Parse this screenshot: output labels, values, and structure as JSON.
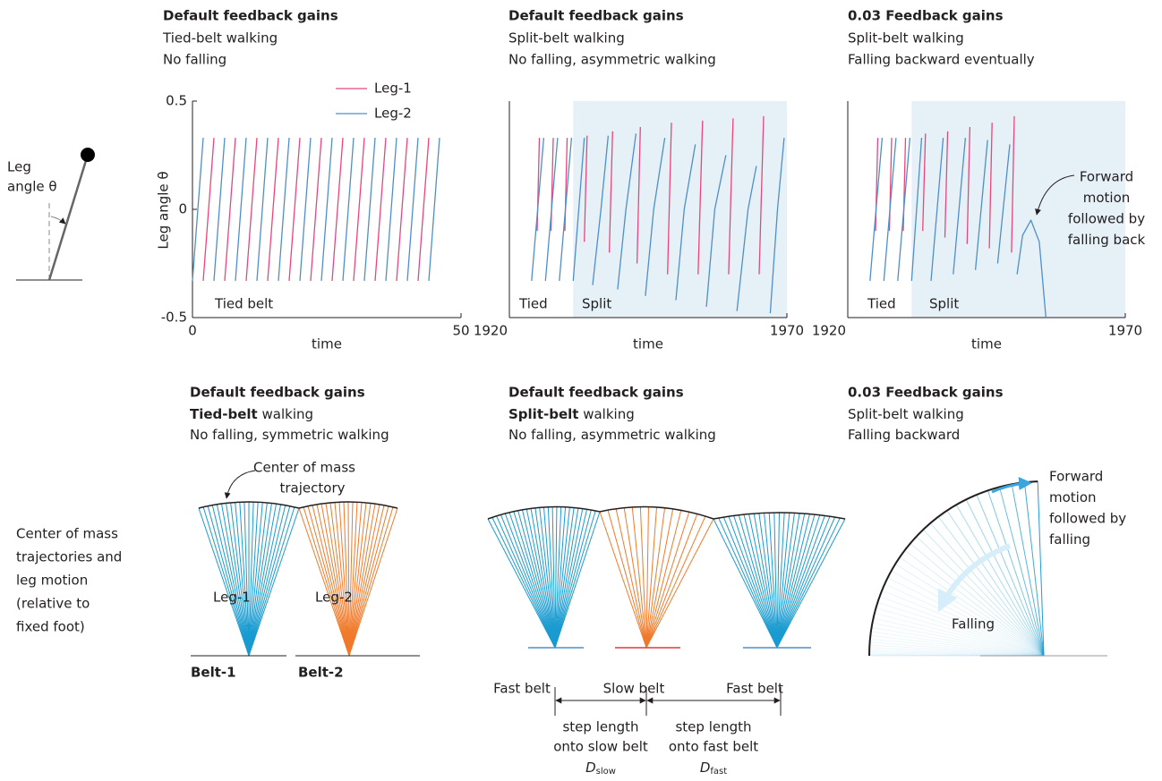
{
  "chart_data": [
    {
      "type": "line",
      "title": "Default feedback gains",
      "subtitle_lines": [
        "Tied-belt walking",
        "No falling"
      ],
      "xlabel": "time",
      "ylabel": "Leg angle θ",
      "xlim": [
        0,
        50
      ],
      "xticks": [
        0,
        50
      ],
      "ylim": [
        -0.5,
        0.5
      ],
      "yticks": [
        -0.5,
        0,
        0.5
      ],
      "legend": true,
      "annotations": [
        "Tied belt"
      ],
      "series": [
        {
          "name": "Leg-1",
          "color": "#e8467c",
          "x": [
            2,
            4,
            null,
            6,
            8,
            null,
            10,
            12,
            null,
            14,
            16,
            null,
            18,
            20,
            null,
            22,
            24,
            null,
            26,
            28,
            null,
            30,
            32,
            null,
            34,
            36,
            null,
            38,
            40,
            null,
            42,
            44
          ],
          "values": [
            -0.33,
            0.33,
            null,
            -0.33,
            0.33,
            null,
            -0.33,
            0.33,
            null,
            -0.33,
            0.33,
            null,
            -0.33,
            0.33,
            null,
            -0.33,
            0.33,
            null,
            -0.33,
            0.33,
            null,
            -0.33,
            0.33,
            null,
            -0.33,
            0.33,
            null,
            -0.33,
            0.33,
            null,
            -0.33,
            0.33
          ]
        },
        {
          "name": "Leg-2",
          "color": "#4f8fc9",
          "x": [
            0,
            2,
            null,
            4,
            6,
            null,
            8,
            10,
            null,
            12,
            14,
            null,
            16,
            18,
            null,
            20,
            22,
            null,
            24,
            26,
            null,
            28,
            30,
            null,
            32,
            34,
            null,
            36,
            38,
            null,
            40,
            42,
            null,
            44,
            46
          ],
          "values": [
            -0.33,
            0.33,
            null,
            -0.33,
            0.33,
            null,
            -0.33,
            0.33,
            null,
            -0.33,
            0.33,
            null,
            -0.33,
            0.33,
            null,
            -0.33,
            0.33,
            null,
            -0.33,
            0.33,
            null,
            -0.33,
            0.33,
            null,
            -0.33,
            0.33,
            null,
            -0.33,
            0.33,
            null,
            -0.33,
            0.33,
            null,
            -0.33,
            0.33
          ]
        }
      ]
    },
    {
      "type": "line",
      "title": "Default feedback gains",
      "subtitle_lines": [
        "Split-belt walking",
        "No falling, asymmetric walking"
      ],
      "xlabel": "time",
      "xlim": [
        1920,
        1970
      ],
      "xticks": [
        1920,
        1970
      ],
      "ylim": [
        -0.5,
        0.5
      ],
      "split_region": [
        1931.5,
        1970
      ],
      "legend": false,
      "annotations": [
        "Tied",
        "Split"
      ],
      "series": [
        {
          "color": "#e8467c",
          "x": [
            1925,
            1925.4,
            null,
            1927.5,
            1927.9,
            null,
            1930,
            1930.4,
            null,
            1933.5,
            1934,
            null,
            1938,
            1938.6,
            null,
            1943,
            1943.6,
            null,
            1948.5,
            1949.2,
            null,
            1954,
            1954.8,
            null,
            1959.5,
            1960.3,
            null,
            1965,
            1965.8
          ],
          "values": [
            -0.1,
            0.33,
            null,
            -0.1,
            0.33,
            null,
            -0.1,
            0.33,
            null,
            -0.15,
            0.34,
            null,
            -0.2,
            0.36,
            null,
            -0.25,
            0.38,
            null,
            -0.3,
            0.4,
            null,
            -0.3,
            0.41,
            null,
            -0.3,
            0.42,
            null,
            -0.3,
            0.43
          ]
        },
        {
          "color": "#4f8fc9",
          "x": [
            1924,
            1926.2,
            null,
            1926.5,
            1928.7,
            null,
            1929,
            1931.2,
            null,
            1931.5,
            1932.5,
            1933.5,
            null,
            1935,
            1936.5,
            1937.8,
            null,
            1939.5,
            1941,
            1942.8,
            null,
            1944.5,
            1946,
            1948,
            null,
            1950,
            1951.5,
            1953.5,
            null,
            1955.5,
            1957,
            1959,
            null,
            1961,
            1963,
            1964.5,
            null,
            1967,
            1968.3,
            1969.5
          ],
          "values": [
            -0.33,
            0.33,
            null,
            -0.33,
            0.33,
            null,
            -0.33,
            0.33,
            null,
            -0.33,
            0,
            0.33,
            null,
            -0.35,
            0,
            0.34,
            null,
            -0.37,
            0,
            0.35,
            null,
            -0.4,
            0,
            0.33,
            null,
            -0.42,
            0,
            0.3,
            null,
            -0.45,
            0,
            0.25,
            null,
            -0.47,
            0,
            0.2,
            null,
            -0.48,
            0,
            0.33
          ]
        }
      ]
    },
    {
      "type": "line",
      "title": "0.03 Feedback gains",
      "subtitle_lines": [
        "Split-belt walking",
        "Falling backward eventually"
      ],
      "xlabel": "time",
      "xlim": [
        1920,
        1970
      ],
      "xticks": [
        1920,
        1970
      ],
      "ylim": [
        -0.5,
        0.5
      ],
      "split_region": [
        1931.5,
        1970
      ],
      "legend": false,
      "annotations": [
        "Tied",
        "Split"
      ],
      "callout": [
        "Forward",
        "motion",
        "followed by",
        "falling back"
      ],
      "series": [
        {
          "color": "#e8467c",
          "x": [
            1925,
            1925.4,
            null,
            1927.5,
            1927.9,
            null,
            1930,
            1930.4,
            null,
            1933.5,
            1934,
            null,
            1937.5,
            1938,
            null,
            1941.5,
            1942,
            null,
            1945.5,
            1946,
            null,
            1949.5,
            1950
          ],
          "values": [
            -0.1,
            0.33,
            null,
            -0.1,
            0.33,
            null,
            -0.1,
            0.33,
            null,
            -0.1,
            0.35,
            null,
            -0.13,
            0.36,
            null,
            -0.16,
            0.38,
            null,
            -0.18,
            0.4,
            null,
            -0.2,
            0.43
          ]
        },
        {
          "color": "#4f8fc9",
          "x": [
            1924,
            1926.2,
            null,
            1926.5,
            1928.7,
            null,
            1929,
            1931.2,
            null,
            1931.5,
            1933.3,
            null,
            1935,
            1937.2,
            null,
            1939,
            1941.2,
            null,
            1943,
            1945.2,
            null,
            1947,
            1949.2,
            null,
            1950.5,
            1951.5,
            1953,
            1954.5,
            1955.7
          ],
          "values": [
            -0.33,
            0.33,
            null,
            -0.33,
            0.33,
            null,
            -0.33,
            0.33,
            null,
            -0.33,
            0.33,
            null,
            -0.33,
            0.33,
            null,
            -0.3,
            0.33,
            null,
            -0.28,
            0.32,
            null,
            -0.25,
            0.3,
            null,
            -0.3,
            -0.12,
            -0.05,
            -0.15,
            -0.5
          ]
        }
      ]
    }
  ],
  "pendulum": {
    "label_lines": [
      "Leg",
      "angle θ"
    ]
  },
  "row_label": [
    "Center of mass",
    "trajectories and",
    "leg motion",
    "(relative to",
    "fixed foot)"
  ],
  "diagrams": [
    {
      "title": "Default feedback gains",
      "lines": [
        [
          {
            "text": "Tied-belt",
            "bold": true
          },
          {
            "text": " walking"
          }
        ],
        [
          {
            "text": "No falling, symmetric walking"
          }
        ]
      ],
      "labels": [
        "Center of mass",
        "trajectory",
        "Leg-1",
        "Leg-2"
      ],
      "belts": [
        "Belt-1",
        "Belt-2"
      ]
    },
    {
      "title": "Default feedback gains",
      "lines": [
        [
          {
            "text": "Split-belt",
            "bold": true
          },
          {
            "text": " walking"
          }
        ],
        [
          {
            "text": "No falling, asymmetric walking"
          }
        ]
      ],
      "belts": [
        "Fast belt",
        "Slow belt",
        "Fast belt"
      ],
      "dimensions": [
        {
          "lines": [
            "step length",
            "onto slow belt"
          ],
          "symbol": "D",
          "subscript": "slow"
        },
        {
          "lines": [
            "step length",
            "onto fast belt"
          ],
          "symbol": "D",
          "subscript": "fast"
        }
      ]
    },
    {
      "title": "0.03 Feedback gains",
      "lines": [
        [
          {
            "text": "Split-belt walking"
          }
        ],
        [
          {
            "text": "Falling backward"
          }
        ]
      ],
      "labels": [
        "Forward",
        "motion",
        "followed by",
        "falling"
      ],
      "falling": "Falling"
    }
  ]
}
